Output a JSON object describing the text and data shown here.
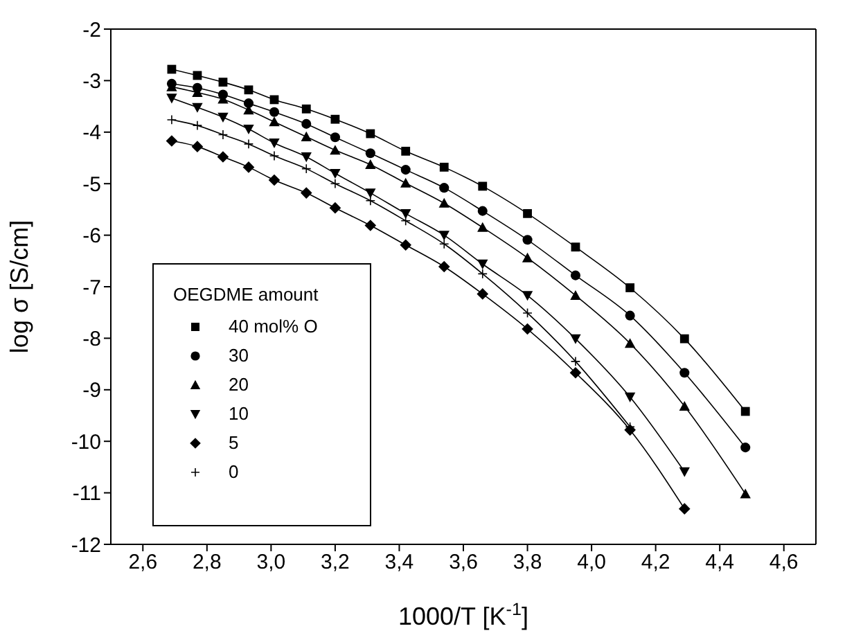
{
  "chart_data": {
    "type": "line",
    "xlabel": "1000/T [K$^{-1}$]",
    "ylabel": "log σ [S/cm]",
    "legend_title": "OEGDME amount",
    "legend": "bottom left",
    "line_style": "solid",
    "xlim": [
      2.5,
      4.7
    ],
    "ylim": [
      -12,
      -2
    ],
    "xticks": [
      {
        "value": 2.6,
        "label": "2,6"
      },
      {
        "value": 2.8,
        "label": "2,8"
      },
      {
        "value": 3.0,
        "label": "3,0"
      },
      {
        "value": 3.2,
        "label": "3,2"
      },
      {
        "value": 3.4,
        "label": "3,4"
      },
      {
        "value": 3.6,
        "label": "3,6"
      },
      {
        "value": 3.8,
        "label": "3,8"
      },
      {
        "value": 4.0,
        "label": "4,0"
      },
      {
        "value": 4.2,
        "label": "4,2"
      },
      {
        "value": 4.4,
        "label": "4,4"
      },
      {
        "value": 4.6,
        "label": "4,6"
      }
    ],
    "yticks": [
      -12,
      -11,
      -10,
      -9,
      -8,
      -7,
      -6,
      -5,
      -4,
      -3,
      -2
    ],
    "x": [
      2.69,
      2.77,
      2.85,
      2.93,
      3.01,
      3.11,
      3.2,
      3.31,
      3.42,
      3.54,
      3.66,
      3.8,
      3.95,
      4.12,
      4.29,
      4.48
    ],
    "series": [
      {
        "name": "40 mol% O",
        "color": "#000000",
        "marker": "square",
        "values": [
          -2.78,
          -2.9,
          -3.03,
          -3.18,
          -3.37,
          -3.55,
          -3.75,
          -4.03,
          -4.37,
          -4.68,
          -5.05,
          -5.58,
          -6.23,
          -7.02,
          -8.01,
          -9.42
        ]
      },
      {
        "name": "30",
        "color": "#000000",
        "marker": "circle",
        "values": [
          -3.06,
          -3.14,
          -3.27,
          -3.44,
          -3.61,
          -3.84,
          -4.1,
          -4.41,
          -4.73,
          -5.08,
          -5.53,
          -6.09,
          -6.78,
          -7.56,
          -8.67,
          -10.12
        ]
      },
      {
        "name": "20",
        "color": "#000000",
        "marker": "triangle",
        "values": [
          -3.12,
          -3.23,
          -3.36,
          -3.57,
          -3.8,
          -4.09,
          -4.35,
          -4.63,
          -4.99,
          -5.38,
          -5.85,
          -6.44,
          -7.17,
          -8.1,
          -9.32,
          -11.02
        ]
      },
      {
        "name": "10",
        "color": "#000000",
        "marker": "triangle-down",
        "values": [
          -3.34,
          -3.52,
          -3.71,
          -3.94,
          -4.21,
          -4.48,
          -4.8,
          -5.18,
          -5.58,
          -6.0,
          -6.56,
          -7.17,
          -8.01,
          -9.14,
          -10.59,
          null
        ]
      },
      {
        "name": "5",
        "color": "#000000",
        "marker": "diamond",
        "values": [
          -4.17,
          -4.28,
          -4.48,
          -4.68,
          -4.93,
          -5.18,
          -5.47,
          -5.81,
          -6.19,
          -6.61,
          -7.14,
          -7.82,
          -8.67,
          -9.78,
          -11.31,
          null
        ]
      },
      {
        "name": "0",
        "color": "#000000",
        "marker": "cross",
        "values": [
          -3.76,
          -3.87,
          -4.05,
          -4.23,
          -4.46,
          -4.71,
          -5.0,
          -5.33,
          -5.72,
          -6.17,
          -6.75,
          -7.51,
          -8.45,
          -9.72,
          null,
          null
        ]
      }
    ]
  }
}
